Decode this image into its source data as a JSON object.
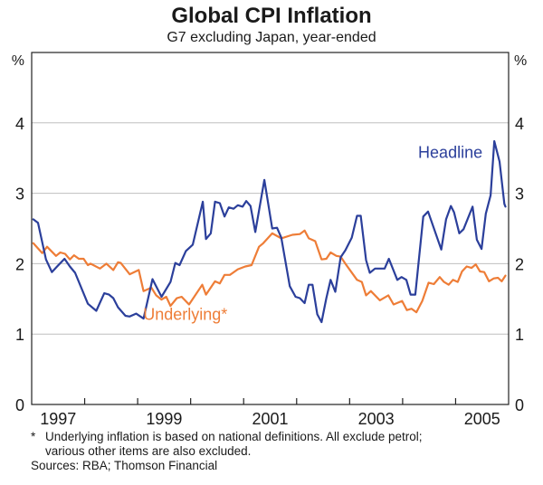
{
  "chart_data": {
    "type": "line",
    "title": "Global CPI Inflation",
    "subtitle": "G7 excluding Japan, year-ended",
    "ylabel_left": "%",
    "ylabel_right": "%",
    "xlabel": "",
    "ylim": [
      0,
      5
    ],
    "xlim": [
      1997.0,
      2006.0
    ],
    "yticks": [
      0,
      1,
      2,
      3,
      4
    ],
    "ytick_labels": [
      "0",
      "1",
      "2",
      "3",
      "4"
    ],
    "xtick_labels": [
      {
        "label": "1997",
        "year": 1997
      },
      {
        "label": "1999",
        "year": 1999
      },
      {
        "label": "2001",
        "year": 2001
      },
      {
        "label": "2003",
        "year": 2003
      },
      {
        "label": "2005",
        "year": 2005
      }
    ],
    "grid": true,
    "series": [
      {
        "name": "Headline",
        "label": "Headline",
        "color": "#2b3f9b",
        "points": [
          [
            1997.03,
            2.63
          ],
          [
            1997.12,
            2.58
          ],
          [
            1997.27,
            2.06
          ],
          [
            1997.38,
            1.88
          ],
          [
            1997.48,
            1.96
          ],
          [
            1997.62,
            2.07
          ],
          [
            1997.72,
            1.96
          ],
          [
            1997.82,
            1.87
          ],
          [
            1998.06,
            1.43
          ],
          [
            1998.22,
            1.33
          ],
          [
            1998.37,
            1.58
          ],
          [
            1998.46,
            1.56
          ],
          [
            1998.63,
            1.38
          ],
          [
            1998.54,
            1.51
          ],
          [
            1998.77,
            1.26
          ],
          [
            1998.85,
            1.25
          ],
          [
            1998.97,
            1.29
          ],
          [
            1999.11,
            1.22
          ],
          [
            1999.28,
            1.78
          ],
          [
            1999.45,
            1.53
          ],
          [
            1999.62,
            1.74
          ],
          [
            1999.71,
            2.01
          ],
          [
            1999.79,
            1.98
          ],
          [
            1999.91,
            2.18
          ],
          [
            2000.04,
            2.27
          ],
          [
            2000.23,
            2.88
          ],
          [
            2000.29,
            2.35
          ],
          [
            2000.38,
            2.43
          ],
          [
            2000.46,
            2.88
          ],
          [
            2000.55,
            2.86
          ],
          [
            2000.64,
            2.67
          ],
          [
            2000.72,
            2.8
          ],
          [
            2000.81,
            2.78
          ],
          [
            2000.89,
            2.83
          ],
          [
            2000.98,
            2.81
          ],
          [
            2001.05,
            2.89
          ],
          [
            2001.13,
            2.82
          ],
          [
            2001.22,
            2.45
          ],
          [
            2001.39,
            3.19
          ],
          [
            2001.54,
            2.5
          ],
          [
            2001.63,
            2.51
          ],
          [
            2001.71,
            2.37
          ],
          [
            2001.87,
            1.68
          ],
          [
            2001.98,
            1.53
          ],
          [
            2002.06,
            1.51
          ],
          [
            2002.15,
            1.44
          ],
          [
            2002.23,
            1.7
          ],
          [
            2002.3,
            1.7
          ],
          [
            2002.39,
            1.28
          ],
          [
            2002.47,
            1.17
          ],
          [
            2002.56,
            1.51
          ],
          [
            2002.64,
            1.77
          ],
          [
            2002.73,
            1.6
          ],
          [
            2002.83,
            2.09
          ],
          [
            2002.92,
            2.19
          ],
          [
            2003.04,
            2.37
          ],
          [
            2003.14,
            2.68
          ],
          [
            2003.21,
            2.68
          ],
          [
            2003.31,
            2.05
          ],
          [
            2003.38,
            1.87
          ],
          [
            2003.48,
            1.93
          ],
          [
            2003.58,
            1.93
          ],
          [
            2003.66,
            1.93
          ],
          [
            2003.74,
            2.07
          ],
          [
            2003.9,
            1.77
          ],
          [
            2003.98,
            1.81
          ],
          [
            2004.07,
            1.77
          ],
          [
            2004.15,
            1.56
          ],
          [
            2004.24,
            1.56
          ],
          [
            2004.39,
            2.67
          ],
          [
            2004.48,
            2.74
          ],
          [
            2004.73,
            2.2
          ],
          [
            2004.82,
            2.63
          ],
          [
            2004.91,
            2.82
          ],
          [
            2004.97,
            2.73
          ],
          [
            2005.07,
            2.43
          ],
          [
            2005.15,
            2.49
          ],
          [
            2005.32,
            2.81
          ],
          [
            2005.4,
            2.34
          ],
          [
            2005.49,
            2.21
          ],
          [
            2005.57,
            2.71
          ],
          [
            2005.66,
            2.97
          ],
          [
            2005.73,
            3.74
          ],
          [
            2005.83,
            3.45
          ],
          [
            2005.92,
            2.85
          ],
          [
            2005.98,
            2.81
          ]
        ]
      },
      {
        "name": "Underlying*",
        "label": "Underlying*",
        "color": "#ee7d37",
        "points": [
          [
            1997.03,
            2.29
          ],
          [
            1997.2,
            2.15
          ],
          [
            1997.29,
            2.24
          ],
          [
            1997.46,
            2.11
          ],
          [
            1997.54,
            2.16
          ],
          [
            1997.63,
            2.14
          ],
          [
            1997.72,
            2.06
          ],
          [
            1997.8,
            2.12
          ],
          [
            1997.89,
            2.07
          ],
          [
            1997.98,
            2.07
          ],
          [
            1998.06,
            1.98
          ],
          [
            1998.11,
            2.0
          ],
          [
            1998.29,
            1.93
          ],
          [
            1998.41,
            2.0
          ],
          [
            1998.54,
            1.91
          ],
          [
            1998.63,
            2.02
          ],
          [
            1998.68,
            2.01
          ],
          [
            1998.85,
            1.85
          ],
          [
            1999.02,
            1.91
          ],
          [
            1999.11,
            1.61
          ],
          [
            1999.26,
            1.66
          ],
          [
            1999.35,
            1.55
          ],
          [
            1999.45,
            1.49
          ],
          [
            1999.54,
            1.53
          ],
          [
            1999.62,
            1.4
          ],
          [
            1999.74,
            1.51
          ],
          [
            1999.83,
            1.53
          ],
          [
            1999.97,
            1.42
          ],
          [
            2000.22,
            1.7
          ],
          [
            2000.29,
            1.56
          ],
          [
            2000.46,
            1.75
          ],
          [
            2000.55,
            1.72
          ],
          [
            2000.64,
            1.84
          ],
          [
            2000.74,
            1.84
          ],
          [
            2000.89,
            1.92
          ],
          [
            2001.03,
            1.96
          ],
          [
            2001.15,
            1.98
          ],
          [
            2001.29,
            2.24
          ],
          [
            2001.37,
            2.29
          ],
          [
            2001.54,
            2.43
          ],
          [
            2001.71,
            2.36
          ],
          [
            2001.92,
            2.41
          ],
          [
            2002.06,
            2.42
          ],
          [
            2002.15,
            2.47
          ],
          [
            2002.23,
            2.36
          ],
          [
            2002.35,
            2.32
          ],
          [
            2002.47,
            2.06
          ],
          [
            2002.56,
            2.07
          ],
          [
            2002.64,
            2.16
          ],
          [
            2002.75,
            2.11
          ],
          [
            2002.83,
            2.1
          ],
          [
            2002.92,
            2.0
          ],
          [
            2003.14,
            1.77
          ],
          [
            2003.23,
            1.74
          ],
          [
            2003.31,
            1.55
          ],
          [
            2003.4,
            1.61
          ],
          [
            2003.57,
            1.48
          ],
          [
            2003.73,
            1.55
          ],
          [
            2003.83,
            1.42
          ],
          [
            2003.99,
            1.47
          ],
          [
            2004.08,
            1.34
          ],
          [
            2004.17,
            1.36
          ],
          [
            2004.26,
            1.31
          ],
          [
            2004.37,
            1.47
          ],
          [
            2004.49,
            1.73
          ],
          [
            2004.59,
            1.71
          ],
          [
            2004.7,
            1.81
          ],
          [
            2004.78,
            1.74
          ],
          [
            2004.87,
            1.7
          ],
          [
            2004.95,
            1.77
          ],
          [
            2005.04,
            1.74
          ],
          [
            2005.12,
            1.89
          ],
          [
            2005.21,
            1.96
          ],
          [
            2005.3,
            1.94
          ],
          [
            2005.38,
            1.99
          ],
          [
            2005.46,
            1.89
          ],
          [
            2005.54,
            1.88
          ],
          [
            2005.63,
            1.75
          ],
          [
            2005.72,
            1.79
          ],
          [
            2005.8,
            1.8
          ],
          [
            2005.87,
            1.75
          ],
          [
            2005.96,
            1.83
          ],
          [
            2006.04,
            1.86
          ],
          [
            2006.12,
            1.82
          ]
        ]
      }
    ],
    "annotations": [
      {
        "text": "Headline",
        "series": "Headline",
        "year": 2004.9,
        "value": 3.5
      },
      {
        "text": "Underlying*",
        "series": "Underlying*",
        "year": 1999.9,
        "value": 1.2
      }
    ]
  },
  "footnotes": {
    "star": "*",
    "line1": "Underlying inflation is based on national definitions. All exclude petrol;",
    "line2": "various other items are also excluded.",
    "sources": "Sources: RBA; Thomson Financial"
  }
}
